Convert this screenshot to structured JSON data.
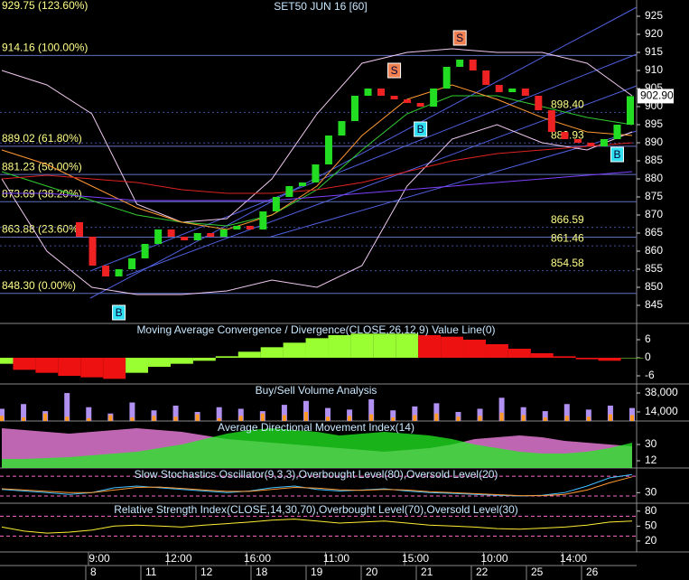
{
  "x_axis": {
    "times": [
      "9:00",
      "12:00",
      "16:00",
      "11:00",
      "15:00",
      "10:00",
      "14:00"
    ],
    "dates": [
      "8",
      "11",
      "12",
      "18",
      "19",
      "20",
      "21",
      "22",
      "25",
      "26"
    ]
  },
  "chart_data": [
    {
      "type": "candlestick",
      "title": "SET50 JUN 16  [60]",
      "up_color": "#22dd22",
      "down_color": "#ee2222",
      "open": [
        868,
        864,
        856,
        853,
        855,
        858,
        862,
        866,
        864,
        863,
        865,
        864,
        866,
        867,
        866,
        871,
        875,
        878,
        879,
        884,
        892,
        896,
        903,
        905,
        903,
        902,
        901,
        900,
        905,
        911,
        913,
        910,
        906,
        904,
        905,
        903,
        899,
        893,
        891,
        890,
        889,
        891,
        895
      ],
      "close": [
        864,
        856,
        853,
        855,
        858,
        862,
        866,
        864,
        863,
        865,
        864,
        866,
        867,
        866,
        871,
        875,
        878,
        879,
        884,
        892,
        896,
        903,
        905,
        903,
        902,
        901,
        900,
        905,
        911,
        913,
        910,
        906,
        904,
        905,
        903,
        899,
        893,
        891,
        890,
        889,
        891,
        895,
        902.9
      ],
      "ylim": [
        840,
        929.5
      ],
      "yticks": [
        845,
        850,
        855,
        860,
        865,
        870,
        875,
        880,
        885,
        890,
        895,
        900,
        905,
        910,
        915,
        920,
        925
      ],
      "fib_levels": [
        {
          "value": 929.75,
          "label": "929.75 (123.60%)"
        },
        {
          "value": 914.16,
          "label": "914.16 (100.00%)"
        },
        {
          "value": 889.02,
          "label": "889.02 (61.80%)"
        },
        {
          "value": 881.23,
          "label": "881.23 (50.00%)"
        },
        {
          "value": 873.69,
          "label": "873.69 (38.20%)"
        },
        {
          "value": 863.88,
          "label": "863.88 (23.60%)"
        },
        {
          "value": 848.3,
          "label": "848.30 (0.00%)"
        }
      ],
      "price_levels": [
        {
          "value": 898.4,
          "label": "898.40"
        },
        {
          "value": 889.93,
          "label": "889.93"
        },
        {
          "value": 866.59,
          "label": "866.59"
        },
        {
          "value": 861.46,
          "label": "861.46"
        },
        {
          "value": 854.58,
          "label": "854.58"
        }
      ],
      "last_price": {
        "value": 902.9,
        "label": "902.90"
      },
      "overlays": [
        {
          "color": "#f0c8f0",
          "values": [
            910,
            906,
            898,
            873,
            868,
            869,
            880,
            898,
            912,
            915,
            916,
            915,
            915,
            912,
            903
          ]
        },
        {
          "color": "#f0c8f0",
          "values": [
            880,
            860,
            850,
            848,
            848,
            849,
            852,
            850,
            856,
            878,
            891,
            895,
            890,
            888,
            893
          ]
        },
        {
          "color": "#33cc33",
          "values": [
            882,
            878,
            874,
            870,
            868,
            867,
            870,
            877,
            888,
            898,
            903,
            903,
            900,
            897,
            895
          ]
        },
        {
          "color": "#ff9933",
          "values": [
            888,
            884,
            878,
            872,
            868,
            866,
            870,
            878,
            892,
            902,
            906,
            902,
            897,
            893,
            892
          ]
        },
        {
          "color": "#dd2222",
          "values": [
            880,
            881,
            880,
            879,
            877,
            876,
            876,
            877,
            879,
            882,
            885,
            887,
            888,
            889,
            890
          ]
        },
        {
          "color": "#8040ff",
          "values": [
            876,
            876,
            875,
            874,
            874,
            874,
            874,
            875,
            876,
            877,
            878,
            879,
            880,
            881,
            882
          ]
        }
      ],
      "annotations": [
        {
          "label": "S",
          "bar": 24,
          "price": 910
        },
        {
          "label": "S",
          "bar": 29,
          "price": 919
        },
        {
          "label": "B",
          "bar": 3,
          "price": 843
        },
        {
          "label": "B",
          "bar": 26,
          "price": 893.75
        },
        {
          "label": "B",
          "bar": 41,
          "price": 886.75
        }
      ]
    },
    {
      "type": "macd",
      "title": "Moving Average Convergence / Divergence(CLOSE,26,12,9) Value Line(0)",
      "up_color": "#99ff33",
      "down_color": "#ee1111",
      "values": [
        -2,
        -4,
        -5,
        -6,
        -6.5,
        -7,
        -5,
        -3,
        -2,
        -1,
        0.5,
        2,
        3.5,
        5,
        6.5,
        7.5,
        8,
        8,
        8,
        7.5,
        7,
        6,
        4.5,
        3,
        1.5,
        0.5,
        -0.5,
        -1,
        0
      ],
      "ylim": [
        -8.7,
        11.4
      ],
      "yticks": [
        6,
        0,
        -6
      ]
    },
    {
      "type": "volume",
      "title": "Buy/Sell Volume Analysis",
      "series": [
        {
          "color": "#b090f0",
          "values": [
            18000,
            24000,
            15000,
            38000,
            20000,
            12000,
            26000,
            16000,
            22000,
            14000,
            20000,
            18000,
            15000,
            23000,
            28000,
            19000,
            17000,
            30000,
            16000,
            21000,
            25000,
            14000,
            18000,
            32000,
            20000,
            15000,
            24000,
            17000,
            22000,
            19000
          ]
        },
        {
          "color": "#ff9922",
          "values": [
            9000,
            7000,
            12000,
            8000,
            6000,
            10000,
            7000,
            9000,
            8000,
            11000,
            6000,
            9000,
            12000,
            10000,
            14000,
            8000,
            9000,
            11000,
            7000,
            10000,
            12000,
            8000,
            9000,
            13000,
            10000,
            7000,
            9000,
            8000,
            11000,
            10000
          ]
        }
      ],
      "ylim": [
        2500,
        49500
      ],
      "yticks": [
        {
          "value": 38000,
          "label": "38,000"
        },
        {
          "value": 14000,
          "label": "14,000"
        }
      ]
    },
    {
      "type": "adx",
      "title": "Average Directional Movement Index(14)",
      "series": [
        {
          "color": "#ff88ee",
          "values": [
            48,
            46,
            44,
            42,
            44,
            46,
            48,
            46,
            44,
            40,
            36,
            34,
            32,
            30,
            28,
            26,
            24,
            22,
            24,
            26,
            30,
            36,
            38,
            40,
            38,
            34,
            32,
            30,
            28
          ]
        },
        {
          "color": "#22ee22",
          "values": [
            14,
            14,
            15,
            16,
            18,
            20,
            22,
            26,
            30,
            36,
            42,
            46,
            48,
            46,
            44,
            40,
            42,
            44,
            42,
            40,
            36,
            30,
            26,
            22,
            20,
            20,
            22,
            26,
            32
          ]
        }
      ],
      "ylim": [
        4,
        56
      ],
      "yticks": [
        30,
        12
      ]
    },
    {
      "type": "oscillator",
      "title": "Slow Stochastics Oscillator(9,3,3),Overbought Level(80),Oversold Level(20)",
      "levels": [
        80,
        20
      ],
      "series": [
        {
          "color": "#40c0ff",
          "values": [
            40,
            35,
            30,
            25,
            30,
            45,
            50,
            45,
            40,
            35,
            30,
            35,
            45,
            50,
            40,
            35,
            38,
            42,
            35,
            30,
            28,
            25,
            22,
            20,
            22,
            30,
            50,
            75,
            85
          ]
        },
        {
          "color": "#ff9933",
          "values": [
            42,
            38,
            34,
            30,
            30,
            38,
            46,
            47,
            43,
            38,
            34,
            34,
            40,
            46,
            44,
            39,
            37,
            40,
            38,
            33,
            30,
            27,
            24,
            21,
            21,
            25,
            38,
            60,
            78
          ]
        }
      ],
      "ylim": [
        -2,
        105
      ],
      "yticks": [
        30
      ]
    },
    {
      "type": "oscillator",
      "title": "Relative Strength Index(CLOSE,14,30,70),Overbought Level(70),Oversold Level(30)",
      "levels": [
        70,
        30
      ],
      "series": [
        {
          "color": "#ffee33",
          "values": [
            48,
            40,
            36,
            38,
            42,
            50,
            52,
            50,
            48,
            52,
            55,
            58,
            62,
            64,
            60,
            56,
            58,
            60,
            56,
            52,
            50,
            48,
            45,
            44,
            46,
            48,
            52,
            58,
            60
          ]
        }
      ],
      "ylim": [
        -2,
        96
      ],
      "yticks": [
        80,
        50,
        20
      ]
    }
  ]
}
